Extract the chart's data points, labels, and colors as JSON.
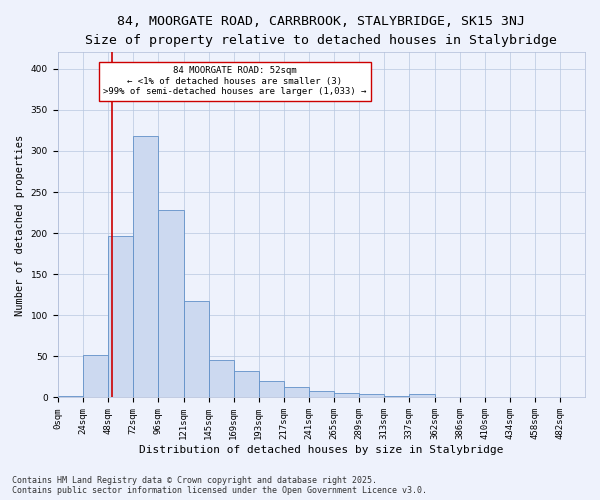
{
  "title1": "84, MOORGATE ROAD, CARRBROOK, STALYBRIDGE, SK15 3NJ",
  "title2": "Size of property relative to detached houses in Stalybridge",
  "xlabel": "Distribution of detached houses by size in Stalybridge",
  "ylabel": "Number of detached properties",
  "bin_labels": [
    "0sqm",
    "24sqm",
    "48sqm",
    "72sqm",
    "96sqm",
    "121sqm",
    "145sqm",
    "169sqm",
    "193sqm",
    "217sqm",
    "241sqm",
    "265sqm",
    "289sqm",
    "313sqm",
    "337sqm",
    "362sqm",
    "386sqm",
    "410sqm",
    "434sqm",
    "458sqm",
    "482sqm"
  ],
  "bar_edges": [
    0,
    24,
    48,
    72,
    96,
    121,
    145,
    169,
    193,
    217,
    241,
    265,
    289,
    313,
    337,
    362,
    386,
    410,
    434,
    458,
    482,
    506
  ],
  "bar_counts": [
    2,
    52,
    196,
    318,
    228,
    117,
    45,
    32,
    20,
    13,
    8,
    6,
    4,
    2,
    4,
    1,
    1,
    1,
    1,
    1,
    1
  ],
  "property_size": 52,
  "bar_color": "#ccd9f0",
  "bar_edge_color": "#6090c8",
  "red_line_color": "#cc0000",
  "background_color": "#eef2fc",
  "annotation_text": "84 MOORGATE ROAD: 52sqm\n← <1% of detached houses are smaller (3)\n>99% of semi-detached houses are larger (1,033) →",
  "annotation_box_color": "#ffffff",
  "annotation_box_edge": "#cc0000",
  "ylim": [
    0,
    420
  ],
  "yticks": [
    0,
    50,
    100,
    150,
    200,
    250,
    300,
    350,
    400
  ],
  "footer": "Contains HM Land Registry data © Crown copyright and database right 2025.\nContains public sector information licensed under the Open Government Licence v3.0.",
  "title1_fontsize": 9.5,
  "title2_fontsize": 8.5,
  "xlabel_fontsize": 8,
  "ylabel_fontsize": 7.5,
  "tick_fontsize": 6.5,
  "annotation_fontsize": 6.5,
  "footer_fontsize": 6.0
}
